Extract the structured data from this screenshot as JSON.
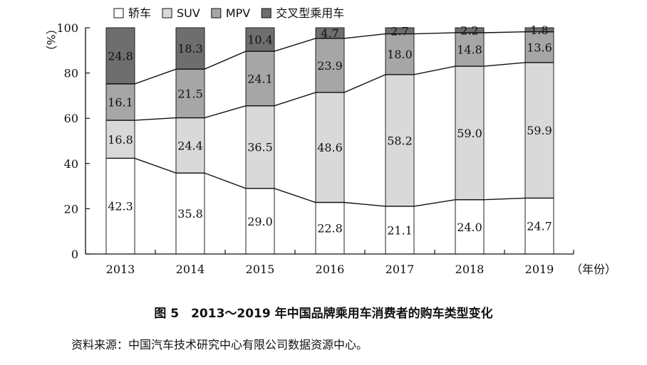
{
  "chart_data": {
    "type": "bar",
    "stacked": true,
    "categories": [
      "2013",
      "2014",
      "2015",
      "2016",
      "2017",
      "2018",
      "2019"
    ],
    "series": [
      {
        "name": "轿车",
        "color": "#ffffff",
        "values": [
          42.3,
          35.8,
          29.0,
          22.8,
          21.1,
          24.0,
          24.7
        ]
      },
      {
        "name": "SUV",
        "color": "#d9d9d9",
        "values": [
          16.8,
          24.4,
          36.5,
          48.6,
          58.2,
          59.0,
          59.9
        ]
      },
      {
        "name": "MPV",
        "color": "#a6a6a6",
        "values": [
          16.1,
          21.5,
          24.1,
          23.9,
          18.0,
          14.8,
          13.6
        ]
      },
      {
        "name": "交叉型乘用车",
        "color": "#6e6e6e",
        "values": [
          24.8,
          18.3,
          10.4,
          4.7,
          2.7,
          2.2,
          1.8
        ]
      }
    ],
    "ylabel": "（%）",
    "xlabel": "（年份）",
    "ylim": [
      0,
      100
    ],
    "yticks": [
      0,
      20,
      40,
      60,
      80,
      100
    ],
    "legend_position": "top"
  },
  "caption": "图 5　2013～2019 年中国品牌乘用车消费者的购车类型变化",
  "source": "资料来源：中国汽车技术研究中心有限公司数据资源中心。"
}
